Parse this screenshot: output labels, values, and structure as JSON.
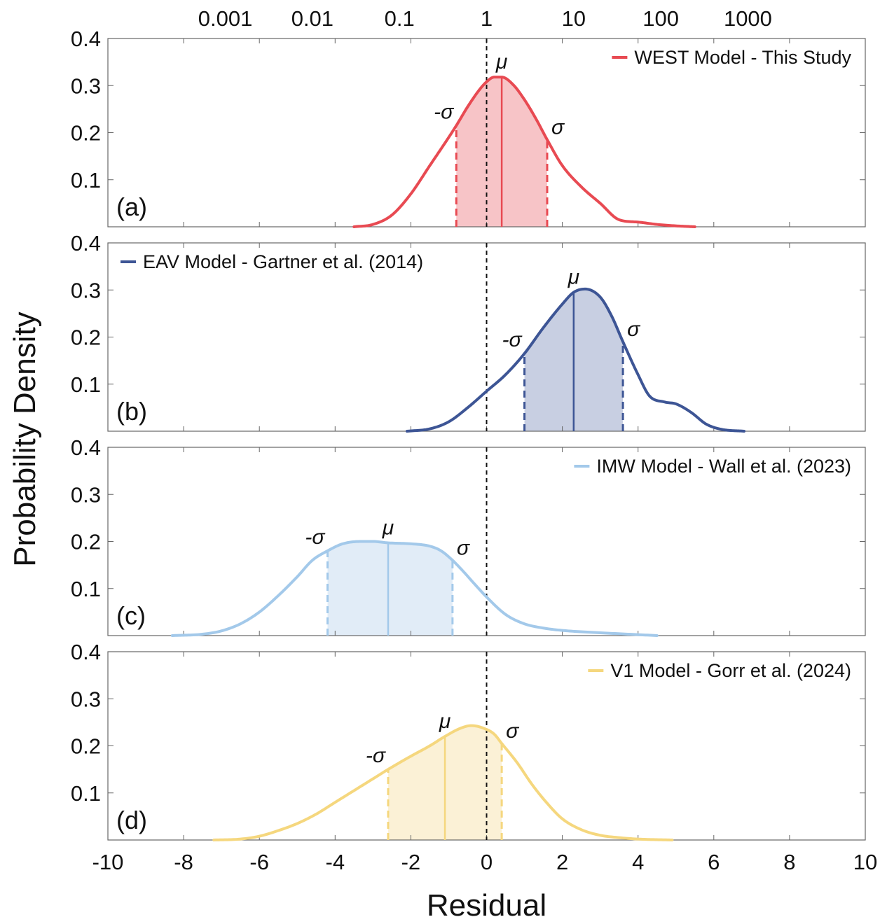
{
  "chart_data": {
    "type": "area",
    "xlabel": "Residual",
    "ylabel": "Probability Density",
    "xlim": [
      -10,
      10
    ],
    "ylim": [
      0,
      0.4
    ],
    "x_ticks": [
      "-10",
      "-8",
      "-6",
      "-4",
      "-2",
      "0",
      "2",
      "4",
      "6",
      "8",
      "10"
    ],
    "y_ticks": [
      "0.1",
      "0.2",
      "0.3",
      "0.4"
    ],
    "top_axis_ticks": [
      {
        "label": "0.001",
        "value": -6.9
      },
      {
        "label": "0.01",
        "value": -4.6
      },
      {
        "label": "0.1",
        "value": -2.3
      },
      {
        "label": "1",
        "value": 0
      },
      {
        "label": "10",
        "value": 2.3
      },
      {
        "label": "100",
        "value": 4.6
      },
      {
        "label": "1000",
        "value": 6.9
      }
    ],
    "reference_line": {
      "x": 0,
      "style": "dashed",
      "color": "#111111"
    },
    "panels": [
      {
        "panel_label": "(a)",
        "series_name": "WEST Model - This Study",
        "color": "#e84a52",
        "fill_color": "#f7c4c7",
        "legend_position": "top-right",
        "mu": 0.4,
        "minus_sigma": -0.8,
        "plus_sigma": 1.6,
        "mu_label": "μ",
        "minus_sigma_label": "-σ",
        "plus_sigma_label": "σ",
        "x": [
          -3.5,
          -3.0,
          -2.5,
          -2.0,
          -1.5,
          -1.0,
          -0.8,
          -0.5,
          -0.2,
          0.0,
          0.2,
          0.4,
          0.7,
          1.0,
          1.3,
          1.6,
          2.0,
          2.5,
          3.0,
          3.5,
          4.0,
          4.5,
          5.0,
          5.5
        ],
        "y": [
          0.0,
          0.005,
          0.025,
          0.07,
          0.13,
          0.19,
          0.215,
          0.255,
          0.29,
          0.308,
          0.318,
          0.318,
          0.302,
          0.27,
          0.23,
          0.185,
          0.13,
          0.085,
          0.05,
          0.015,
          0.01,
          0.005,
          0.002,
          0.0
        ]
      },
      {
        "panel_label": "(b)",
        "series_name": "EAV Model - Gartner et al. (2014)",
        "color": "#3d5595",
        "fill_color": "#c8cfe2",
        "legend_position": "top-left",
        "mu": 2.3,
        "minus_sigma": 1.0,
        "plus_sigma": 3.6,
        "mu_label": "μ",
        "minus_sigma_label": "-σ",
        "plus_sigma_label": "σ",
        "x": [
          -2.1,
          -1.5,
          -1.0,
          -0.5,
          0.0,
          0.5,
          1.0,
          1.5,
          2.0,
          2.3,
          2.6,
          3.0,
          3.3,
          3.6,
          4.0,
          4.3,
          4.7,
          5.0,
          5.4,
          5.8,
          6.2,
          6.8
        ],
        "y": [
          0.0,
          0.005,
          0.02,
          0.05,
          0.085,
          0.12,
          0.165,
          0.22,
          0.27,
          0.295,
          0.302,
          0.285,
          0.245,
          0.19,
          0.12,
          0.075,
          0.062,
          0.058,
          0.04,
          0.015,
          0.004,
          0.0
        ]
      },
      {
        "panel_label": "(c)",
        "series_name": "IMW Model - Wall et al. (2023)",
        "color": "#a3c9ea",
        "fill_color": "#e1ecf7",
        "legend_position": "top-right",
        "mu": -2.6,
        "minus_sigma": -4.2,
        "plus_sigma": -0.9,
        "mu_label": "μ",
        "minus_sigma_label": "-σ",
        "plus_sigma_label": "σ",
        "x": [
          -8.3,
          -7.5,
          -7.0,
          -6.5,
          -6.0,
          -5.5,
          -5.0,
          -4.6,
          -4.2,
          -3.8,
          -3.3,
          -3.0,
          -2.6,
          -2.0,
          -1.5,
          -1.2,
          -0.9,
          -0.6,
          -0.3,
          0.0,
          0.5,
          1.0,
          1.5,
          2.0,
          3.0,
          4.0,
          4.5
        ],
        "y": [
          0.0,
          0.003,
          0.01,
          0.025,
          0.05,
          0.085,
          0.125,
          0.16,
          0.18,
          0.195,
          0.2,
          0.2,
          0.197,
          0.195,
          0.19,
          0.18,
          0.16,
          0.135,
          0.108,
          0.082,
          0.045,
          0.025,
          0.016,
          0.011,
          0.006,
          0.002,
          0.0
        ]
      },
      {
        "panel_label": "(d)",
        "series_name": "V1 Model - Gorr et al. (2024)",
        "color": "#f5d77e",
        "fill_color": "#fbf1d6",
        "legend_position": "top-right",
        "mu": -1.1,
        "minus_sigma": -2.6,
        "plus_sigma": 0.4,
        "mu_label": "μ",
        "minus_sigma_label": "-σ",
        "plus_sigma_label": "σ",
        "x": [
          -7.2,
          -6.5,
          -6.0,
          -5.5,
          -5.0,
          -4.5,
          -4.0,
          -3.5,
          -3.0,
          -2.6,
          -2.0,
          -1.5,
          -1.1,
          -0.7,
          -0.4,
          -0.1,
          0.2,
          0.4,
          0.8,
          1.2,
          1.6,
          2.0,
          2.5,
          3.0,
          3.5,
          4.0,
          4.9
        ],
        "y": [
          0.0,
          0.002,
          0.008,
          0.02,
          0.035,
          0.055,
          0.08,
          0.105,
          0.13,
          0.15,
          0.178,
          0.2,
          0.22,
          0.237,
          0.243,
          0.238,
          0.225,
          0.205,
          0.165,
          0.118,
          0.078,
          0.045,
          0.022,
          0.01,
          0.005,
          0.002,
          0.0
        ]
      }
    ]
  }
}
